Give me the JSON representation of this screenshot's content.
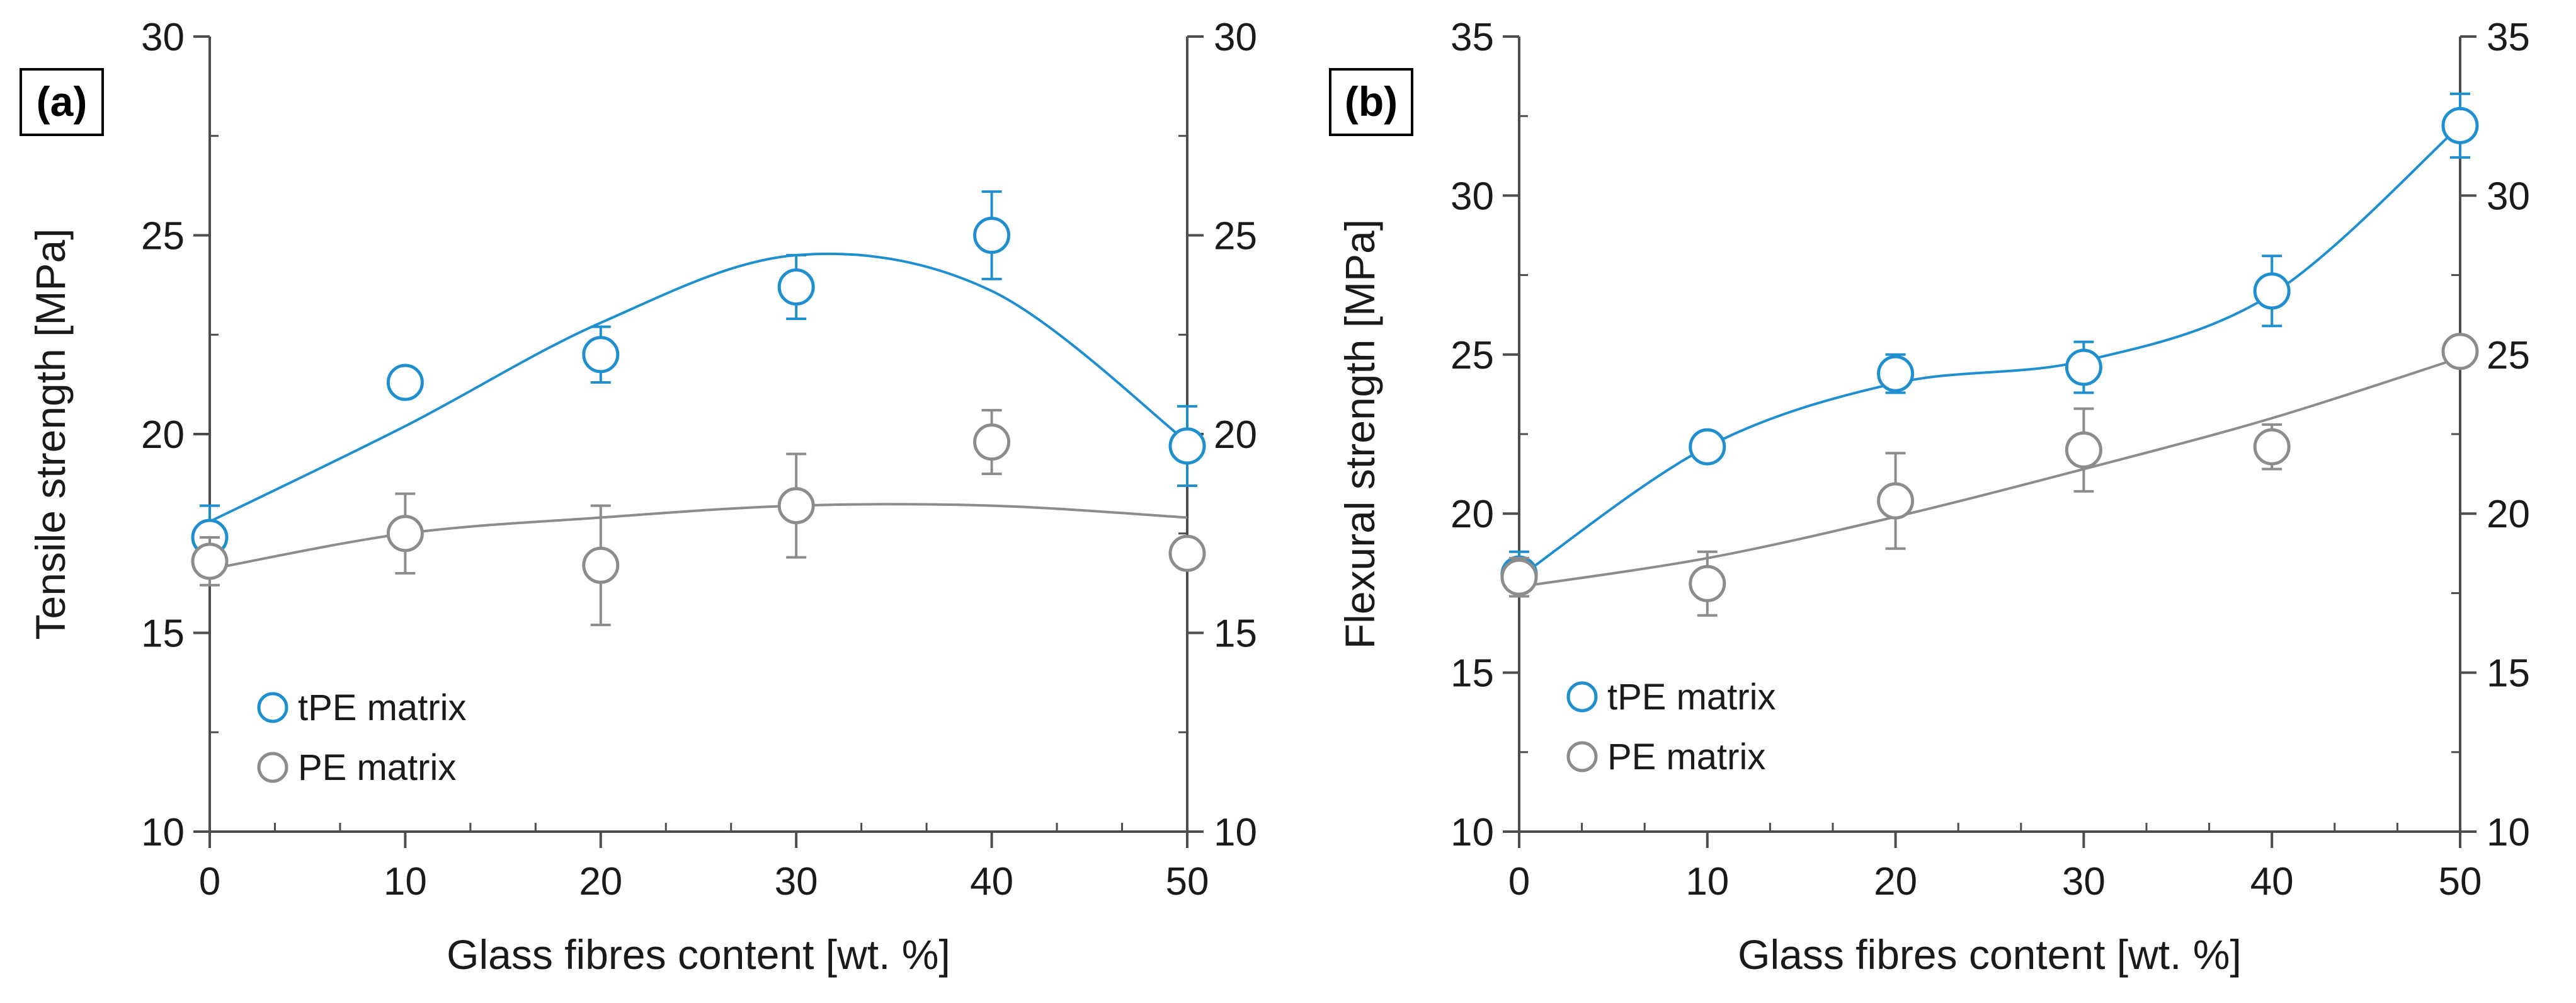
{
  "figure": {
    "chart_data": [
      {
        "type": "scatter",
        "panel_label": "(a)",
        "title": "",
        "xlabel": "Glass fibres content [wt. %]",
        "ylabel": "Tensile strength   [MPa]",
        "xlim": [
          0,
          50
        ],
        "ylim": [
          10,
          30
        ],
        "xticks": [
          0,
          10,
          20,
          30,
          40,
          50
        ],
        "yticks": [
          10,
          15,
          20,
          25,
          30
        ],
        "xtick_labels": [
          "0",
          "10",
          "20",
          "30",
          "40",
          "50"
        ],
        "ytick_labels": [
          "10",
          "15",
          "20",
          "25",
          "30"
        ],
        "legend_position": "bottom-left",
        "series": [
          {
            "name": "tPE matrix",
            "color": "#1f8fcf",
            "x": [
              0,
              10,
              20,
              30,
              40,
              50
            ],
            "y": [
              17.4,
              21.3,
              22.0,
              23.7,
              25.0,
              19.7
            ],
            "err": [
              0.8,
              0.0,
              0.7,
              0.8,
              1.1,
              1.0
            ],
            "trend": [
              17.8,
              20.2,
              22.8,
              24.5,
              23.6,
              19.8
            ]
          },
          {
            "name": "PE matrix",
            "color": "#8c8c8c",
            "x": [
              0,
              10,
              20,
              30,
              40,
              50
            ],
            "y": [
              16.8,
              17.5,
              16.7,
              18.2,
              19.8,
              17.0
            ],
            "err": [
              0.6,
              1.0,
              1.5,
              1.3,
              0.8,
              0.0
            ],
            "trend": [
              16.6,
              17.5,
              17.9,
              18.2,
              18.2,
              17.9
            ]
          }
        ]
      },
      {
        "type": "scatter",
        "panel_label": "(b)",
        "title": "",
        "xlabel": "Glass fibres content [wt. %]",
        "ylabel": "Flexural strength [MPa]",
        "xlim": [
          0,
          50
        ],
        "ylim": [
          10,
          35
        ],
        "xticks": [
          0,
          10,
          20,
          30,
          40,
          50
        ],
        "yticks": [
          10,
          15,
          20,
          25,
          30,
          35
        ],
        "xtick_labels": [
          "0",
          "10",
          "20",
          "30",
          "40",
          "50"
        ],
        "ytick_labels": [
          "10",
          "15",
          "20",
          "25",
          "30",
          "35"
        ],
        "legend_position": "bottom-left",
        "series": [
          {
            "name": "tPE matrix",
            "color": "#1f8fcf",
            "x": [
              0,
              10,
              20,
              30,
              40,
              50
            ],
            "y": [
              18.1,
              22.1,
              24.4,
              24.6,
              27.0,
              32.2
            ],
            "err": [
              0.7,
              0.0,
              0.6,
              0.8,
              1.1,
              1.0
            ],
            "trend": [
              18.0,
              22.1,
              24.1,
              24.8,
              26.9,
              32.2
            ]
          },
          {
            "name": "PE matrix",
            "color": "#8c8c8c",
            "x": [
              0,
              10,
              20,
              30,
              40,
              50
            ],
            "y": [
              18.0,
              17.8,
              20.4,
              22.0,
              22.1,
              25.1
            ],
            "err": [
              0.6,
              1.0,
              1.5,
              1.3,
              0.7,
              0.0
            ],
            "trend": [
              17.7,
              18.6,
              19.9,
              21.4,
              23.0,
              24.9
            ]
          }
        ]
      }
    ]
  }
}
